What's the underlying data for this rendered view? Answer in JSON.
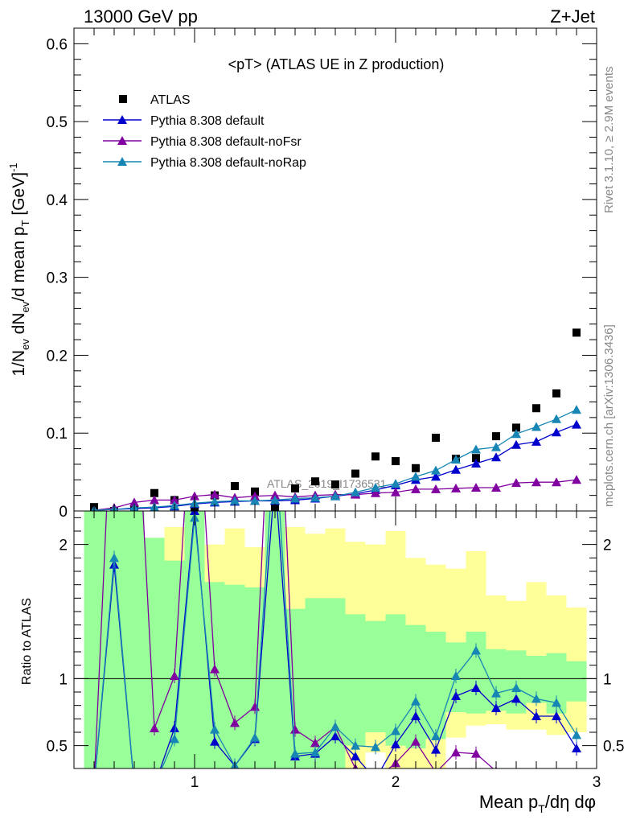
{
  "header": {
    "left": "13000 GeV pp",
    "right": "Z+Jet",
    "side_top": "Rivet 3.1.10, ≥ 2.9M events",
    "side_bottom": "mcplots.cern.ch [arXiv:1306.3436]",
    "watermark": "ATLAS_2019_I1736531"
  },
  "chart_data": [
    {
      "type": "scatter",
      "title": "<pT> (ATLAS UE in Z production)",
      "ylabel": "1/N_ev dN_ev/d mean p_T [GeV]^-1",
      "xlim": [
        0.4,
        3.0
      ],
      "ylim": [
        0,
        0.62
      ],
      "yticks": [
        0,
        0.1,
        0.2,
        0.3,
        0.4,
        0.5,
        0.6
      ],
      "ytick_labels": [
        "0",
        "0.1",
        "0.2",
        "0.3",
        "0.4",
        "0.5",
        "0.6"
      ],
      "legend_position": "top-left",
      "x": [
        0.5,
        0.6,
        0.7,
        0.8,
        0.9,
        1.0,
        1.1,
        1.2,
        1.3,
        1.4,
        1.5,
        1.6,
        1.7,
        1.8,
        1.9,
        2.0,
        2.1,
        2.2,
        2.3,
        2.4,
        2.5,
        2.6,
        2.7,
        2.8,
        2.9
      ],
      "series": [
        {
          "name": "ATLAS",
          "marker": "square",
          "color": "#000000",
          "values": [
            0.005,
            0.0,
            0.002,
            0.023,
            0.014,
            0.002,
            0.02,
            0.032,
            0.025,
            0.005,
            0.029,
            0.038,
            0.034,
            0.048,
            0.07,
            0.064,
            0.055,
            0.094,
            0.067,
            0.068,
            0.096,
            0.107,
            0.132,
            0.151,
            0.229
          ]
        },
        {
          "name": "Pythia 8.308 default",
          "marker": "triangle",
          "color": "#0000cc",
          "values": [
            0.001,
            0.002,
            0.003,
            0.004,
            0.006,
            0.009,
            0.011,
            0.012,
            0.013,
            0.013,
            0.014,
            0.016,
            0.019,
            0.022,
            0.027,
            0.033,
            0.04,
            0.044,
            0.053,
            0.061,
            0.069,
            0.085,
            0.089,
            0.101,
            0.111
          ]
        },
        {
          "name": "Pythia 8.308 default-noFsr",
          "marker": "triangle",
          "color": "#8000a0",
          "values": [
            0.001,
            0.004,
            0.011,
            0.014,
            0.014,
            0.019,
            0.021,
            0.017,
            0.019,
            0.02,
            0.018,
            0.02,
            0.021,
            0.021,
            0.023,
            0.024,
            0.028,
            0.028,
            0.029,
            0.03,
            0.03,
            0.036,
            0.037,
            0.037,
            0.04
          ]
        },
        {
          "name": "Pythia 8.308 default-noRap",
          "marker": "triangle",
          "color": "#1786b4",
          "values": [
            0.001,
            0.002,
            0.004,
            0.005,
            0.007,
            0.01,
            0.012,
            0.013,
            0.013,
            0.014,
            0.016,
            0.017,
            0.019,
            0.024,
            0.03,
            0.035,
            0.044,
            0.052,
            0.066,
            0.079,
            0.082,
            0.099,
            0.108,
            0.118,
            0.13
          ]
        }
      ]
    },
    {
      "type": "line",
      "xlabel": "Mean p_T/dη dφ",
      "ylabel": "Ratio to ATLAS",
      "xlim": [
        0.4,
        3.0
      ],
      "ylim": [
        0.33,
        2.25
      ],
      "xticks": [
        1,
        2,
        3
      ],
      "xtick_labels": [
        "1",
        "2",
        "3"
      ],
      "yticks": [
        0.5,
        1,
        2
      ],
      "ytick_labels": [
        "0.5",
        "1",
        "2"
      ],
      "x": [
        0.5,
        0.6,
        0.7,
        0.8,
        0.9,
        1.0,
        1.1,
        1.2,
        1.3,
        1.4,
        1.5,
        1.6,
        1.7,
        1.8,
        1.9,
        2.0,
        2.1,
        2.2,
        2.3,
        2.4,
        2.5,
        2.6,
        2.7,
        2.8,
        2.9
      ],
      "band_colors": {
        "outer": "#ffff99",
        "inner": "#99ff99"
      },
      "band_outer": {
        "lo": [
          0,
          0,
          0,
          0,
          0,
          0,
          0,
          0,
          0,
          0,
          0,
          0,
          0,
          0,
          0.45,
          0.3,
          0.25,
          0.3,
          0.56,
          0.65,
          0.66,
          0.62,
          0.62,
          0.58,
          0.6
        ],
        "hi": [
          5,
          5,
          5,
          2.05,
          2.13,
          5,
          2.0,
          2.12,
          1.98,
          5,
          2.13,
          2.08,
          2.12,
          2.02,
          2.0,
          2.1,
          1.9,
          1.85,
          1.82,
          1.95,
          1.62,
          1.58,
          1.72,
          1.62,
          1.53
        ]
      },
      "band_inner": {
        "lo": [
          0,
          0,
          0,
          0,
          0,
          0,
          0,
          0,
          0,
          0,
          0,
          0,
          0,
          0.5,
          0.6,
          0.5,
          0.48,
          0.55,
          0.75,
          0.74,
          0.76,
          0.74,
          0.82,
          0.74,
          0.83
        ],
        "hi": [
          5,
          5,
          5,
          2.05,
          1.88,
          5,
          1.72,
          1.7,
          1.68,
          5,
          1.52,
          1.6,
          1.6,
          1.48,
          1.43,
          1.48,
          1.4,
          1.35,
          1.27,
          1.35,
          1.22,
          1.21,
          1.17,
          1.19,
          1.13
        ]
      },
      "series": [
        {
          "name": "Pythia 8.308 default",
          "color": "#0000cc",
          "values": [
            0.2,
            1.85,
            0.2,
            0.2,
            0.63,
            2.25,
            0.53,
            0.35,
            0.55,
            2.5,
            0.42,
            0.44,
            0.57,
            0.42,
            0.25,
            0.51,
            0.72,
            0.47,
            0.87,
            0.93,
            0.78,
            0.85,
            0.72,
            0.72,
            0.48
          ]
        },
        {
          "name": "Pythia 8.308 default-noFsr",
          "color": "#8000a0",
          "values": [
            0.2,
            3.5,
            3.5,
            0.63,
            1.02,
            3.5,
            1.07,
            0.67,
            0.79,
            4.0,
            0.62,
            0.52,
            0.64,
            0.33,
            0.25,
            0.37,
            0.53,
            0.3,
            0.45,
            0.44,
            0.31,
            0.3,
            0.3,
            0.3,
            0.3
          ]
        },
        {
          "name": "Pythia 8.308 default-noRap",
          "color": "#1786b4",
          "values": [
            0.2,
            1.9,
            0.2,
            0.2,
            0.55,
            2.2,
            0.62,
            0.35,
            0.56,
            2.8,
            0.44,
            0.45,
            0.64,
            0.5,
            0.49,
            0.61,
            0.83,
            0.57,
            1.02,
            1.21,
            0.89,
            0.93,
            0.85,
            0.82,
            0.58
          ]
        }
      ]
    }
  ]
}
